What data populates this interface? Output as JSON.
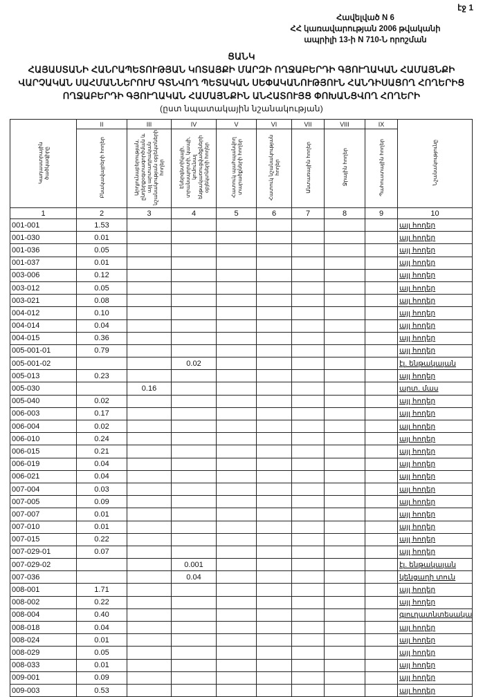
{
  "page_label": "էջ 1",
  "annex": [
    "Հավելված N 6",
    "ՀՀ կառավարության 2006 թվականի",
    "ապրիլի 13-ի N 710-Ն որոշման"
  ],
  "title": "ՑԱՆԿ",
  "heading": [
    "ՀԱՅԱՍՏԱՆԻ ՀԱՆՐԱՊԵՏՈՒԹՅԱՆ ԿՈՏԱՅՔԻ ՄԱՐԶԻ ՈՂՋԱԲԵՐԴԻ ԳՅՈՒՂԱԿԱՆ ՀԱՄԱՅՆՔԻ",
    "ՎԱՐՉԱԿԱՆ ՍԱՀՄԱՆՆԵՐՈՒՄ ԳՏՆՎՈՂ ՊԵՏԱԿԱՆ ՍԵՓԱԿԱՆՈՒԹՅՈՒՆ ՀԱՆԴԻՍԱՑՈՂ ՀՈՂԵՐԻՑ",
    "ՈՂՋԱԲԵՐԴԻ ԳՅՈՒՂԱԿԱՆ ՀԱՄԱՅՆՔԻՆ ԱՆՀԱՏՈՒՅՑ ՓՈԽԱՆՑՎՈՂ ՀՈՂԵՐԻ"
  ],
  "subheading": "(ըստ նպատակային նշանակության)",
  "columns": {
    "roman": [
      "",
      "II",
      "III",
      "IV",
      "V",
      "VI",
      "VII",
      "VIII",
      "IX",
      ""
    ],
    "headers": [
      "Կադաստրային ծածկագիրը",
      "Բնակավայրերի հողեր",
      "Արդյունաբերության, ընդերքօգտագործման և այլ արտադրական նշանակության օբյեկտների հողեր",
      "Էներգետիկայի, տրանսպորտի, կապի, կոմունալ ենթակառուցվածքների օբյեկտների հողեր",
      "Հատուկ պահպանվող տարածքների հողեր",
      "Հատուկ նշանակության հողեր",
      "Անտառային հողեր",
      "Ջրային հողեր",
      "Պահուստային հողեր",
      "Նշանակությունը"
    ],
    "index": [
      "1",
      "2",
      "3",
      "4",
      "5",
      "6",
      "7",
      "8",
      "9",
      "10"
    ]
  },
  "rows": [
    {
      "code": "001-001",
      "c2": "1.53",
      "dest": "այլ հողեր"
    },
    {
      "code": "001-030",
      "c2": "0.01",
      "dest": "այլ հողեր"
    },
    {
      "code": "001-036",
      "c2": "0.05",
      "dest": "այլ հողեր"
    },
    {
      "code": "001-037",
      "c2": "0.01",
      "dest": "այլ հողեր"
    },
    {
      "code": "003-006",
      "c2": "0.12",
      "dest": "այլ հողեր"
    },
    {
      "code": "003-012",
      "c2": "0.05",
      "dest": "այլ հողեր"
    },
    {
      "code": "003-021",
      "c2": "0.08",
      "dest": "այլ հողեր"
    },
    {
      "code": "004-012",
      "c2": "0.10",
      "dest": "այլ հողեր"
    },
    {
      "code": "004-014",
      "c2": "0.04",
      "dest": "այլ հողեր"
    },
    {
      "code": "004-015",
      "c2": "0.36",
      "dest": "այլ հողեր"
    },
    {
      "code": "005-001-01",
      "c2": "0.79",
      "dest": "այլ հողեր"
    },
    {
      "code": "005-001-02",
      "c4": "0.02",
      "dest": "էլ. ենթակայան"
    },
    {
      "code": "005-013",
      "c2": "0.23",
      "dest": "այլ հողեր"
    },
    {
      "code": "005-030",
      "c3": "0.16",
      "dest": "արտ. մաս"
    },
    {
      "code": "005-040",
      "c2": "0.02",
      "dest": "այլ հողեր"
    },
    {
      "code": "006-003",
      "c2": "0.17",
      "dest": "այլ հողեր"
    },
    {
      "code": "006-004",
      "c2": "0.02",
      "dest": "այլ հողեր"
    },
    {
      "code": "006-010",
      "c2": "0.24",
      "dest": "այլ հողեր"
    },
    {
      "code": "006-015",
      "c2": "0.21",
      "dest": "այլ հողեր"
    },
    {
      "code": "006-019",
      "c2": "0.04",
      "dest": "այլ հողեր"
    },
    {
      "code": "006-021",
      "c2": "0.04",
      "dest": "այլ հողեր"
    },
    {
      "code": "007-004",
      "c2": "0.03",
      "dest": "այլ հողեր"
    },
    {
      "code": "007-005",
      "c2": "0.09",
      "dest": "այլ հողեր"
    },
    {
      "code": "007-007",
      "c2": "0.01",
      "dest": "այլ հողեր"
    },
    {
      "code": "007-010",
      "c2": "0.01",
      "dest": "այլ հողեր"
    },
    {
      "code": "007-015",
      "c2": "0.22",
      "dest": "այլ հողեր"
    },
    {
      "code": "007-029-01",
      "c2": "0.07",
      "dest": "այլ հողեր"
    },
    {
      "code": "007-029-02",
      "c4": "0.001",
      "dest": "էլ. ենթակայան"
    },
    {
      "code": "007-036",
      "c4": "0.04",
      "dest": "կենցաղի տուն"
    },
    {
      "code": "008-001",
      "c2": "1.71",
      "dest": "այլ հողեր"
    },
    {
      "code": "008-002",
      "c2": "0.22",
      "dest": "այլ հողեր"
    },
    {
      "code": "008-004",
      "c2": "0.40",
      "dest": "գյուղատնտեսական"
    },
    {
      "code": "008-018",
      "c2": "0.04",
      "dest": "այլ հողեր"
    },
    {
      "code": "008-024",
      "c2": "0.01",
      "dest": "այլ հողեր"
    },
    {
      "code": "008-029",
      "c2": "0.05",
      "dest": "այլ հողեր"
    },
    {
      "code": "008-033",
      "c2": "0.01",
      "dest": "այլ հողեր"
    },
    {
      "code": "009-001",
      "c2": "0.09",
      "dest": "այլ հողեր"
    },
    {
      "code": "009-003",
      "c2": "0.53",
      "dest": "այլ հողեր"
    }
  ]
}
